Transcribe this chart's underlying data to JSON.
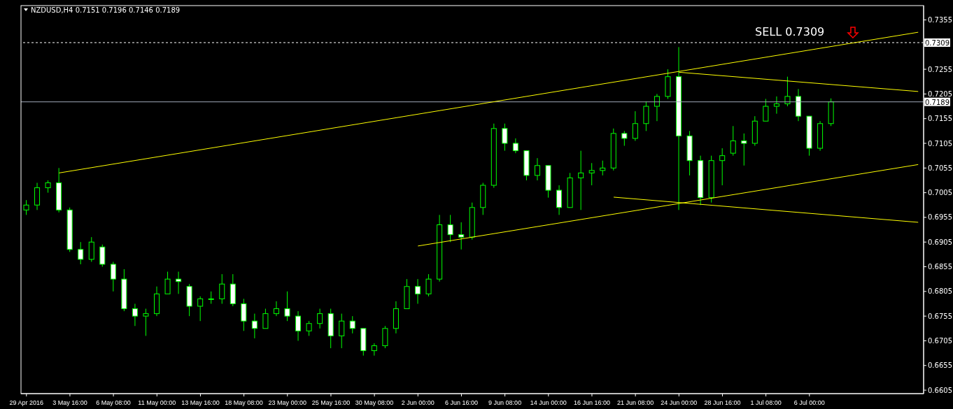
{
  "chart_data": {
    "type": "candlestick",
    "title": "NZDUSD,H4 0.7151 0.7196 0.7146 0.7189",
    "color": "#00ff00",
    "categories": [
      "29 Apr 2016",
      null,
      null,
      null,
      "3 May 16:00",
      null,
      null,
      null,
      "6 May 08:00",
      null,
      null,
      null,
      "11 May 00:00",
      null,
      null,
      null,
      "13 May 16:00",
      null,
      null,
      null,
      "18 May 08:00",
      null,
      null,
      null,
      "23 May 00:00",
      null,
      null,
      null,
      "25 May 16:00",
      null,
      null,
      null,
      "30 May 08:00",
      null,
      null,
      null,
      "2 Jun 00:00",
      null,
      null,
      null,
      "6 Jun 16:00",
      null,
      null,
      null,
      "9 Jun 08:00",
      null,
      null,
      null,
      "14 Jun 00:00",
      null,
      null,
      null,
      "16 Jun 16:00",
      null,
      null,
      null,
      "21 Jun 08:00",
      null,
      null,
      null,
      "24 Jun 00:00",
      null,
      null,
      null,
      "28 Jun 16:00",
      null,
      null,
      null,
      "1 Jul 08:00",
      null,
      null,
      null,
      "6 Jul 00:00",
      null,
      null,
      null,
      null,
      null,
      null,
      null,
      null,
      null,
      null
    ],
    "ohlc": [
      [
        0.697,
        0.699,
        0.696,
        0.698
      ],
      [
        0.698,
        0.7025,
        0.697,
        0.7015
      ],
      [
        0.7015,
        0.703,
        0.7005,
        0.7025
      ],
      [
        0.7025,
        0.7055,
        0.6965,
        0.697
      ],
      [
        0.697,
        0.6975,
        0.6885,
        0.689
      ],
      [
        0.689,
        0.6905,
        0.686,
        0.687
      ],
      [
        0.687,
        0.6915,
        0.6865,
        0.6905
      ],
      [
        0.6895,
        0.69,
        0.6855,
        0.686
      ],
      [
        0.686,
        0.6865,
        0.6805,
        0.683
      ],
      [
        0.683,
        0.685,
        0.6765,
        0.677
      ],
      [
        0.677,
        0.678,
        0.6735,
        0.6755
      ],
      [
        0.6755,
        0.677,
        0.6715,
        0.676
      ],
      [
        0.676,
        0.6815,
        0.6755,
        0.68
      ],
      [
        0.68,
        0.6845,
        0.68,
        0.683
      ],
      [
        0.683,
        0.6845,
        0.68,
        0.6825
      ],
      [
        0.6815,
        0.682,
        0.6755,
        0.6775
      ],
      [
        0.6775,
        0.6795,
        0.6745,
        0.679
      ],
      [
        0.679,
        0.6805,
        0.678,
        0.679
      ],
      [
        0.679,
        0.684,
        0.678,
        0.682
      ],
      [
        0.682,
        0.684,
        0.6775,
        0.678
      ],
      [
        0.678,
        0.679,
        0.6725,
        0.6745
      ],
      [
        0.6745,
        0.676,
        0.671,
        0.673
      ],
      [
        0.673,
        0.677,
        0.673,
        0.676
      ],
      [
        0.676,
        0.6785,
        0.6755,
        0.677
      ],
      [
        0.677,
        0.6805,
        0.6745,
        0.6755
      ],
      [
        0.6755,
        0.6765,
        0.6705,
        0.6725
      ],
      [
        0.6725,
        0.6745,
        0.6715,
        0.674
      ],
      [
        0.674,
        0.677,
        0.673,
        0.676
      ],
      [
        0.676,
        0.677,
        0.669,
        0.6715
      ],
      [
        0.6715,
        0.676,
        0.669,
        0.6745
      ],
      [
        0.6745,
        0.6755,
        0.672,
        0.673
      ],
      [
        0.673,
        0.673,
        0.6675,
        0.6685
      ],
      [
        0.6685,
        0.67,
        0.6675,
        0.6695
      ],
      [
        0.6695,
        0.6735,
        0.669,
        0.673
      ],
      [
        0.673,
        0.6785,
        0.672,
        0.677
      ],
      [
        0.677,
        0.683,
        0.677,
        0.6815
      ],
      [
        0.6815,
        0.683,
        0.678,
        0.68
      ],
      [
        0.68,
        0.684,
        0.6795,
        0.683
      ],
      [
        0.683,
        0.696,
        0.6825,
        0.694
      ],
      [
        0.694,
        0.696,
        0.6905,
        0.692
      ],
      [
        0.692,
        0.6945,
        0.689,
        0.6915
      ],
      [
        0.6915,
        0.6985,
        0.691,
        0.6975
      ],
      [
        0.6975,
        0.7025,
        0.696,
        0.702
      ],
      [
        0.702,
        0.7145,
        0.7015,
        0.7135
      ],
      [
        0.7135,
        0.7145,
        0.709,
        0.7105
      ],
      [
        0.7105,
        0.7115,
        0.7085,
        0.709
      ],
      [
        0.709,
        0.709,
        0.703,
        0.704
      ],
      [
        0.704,
        0.7075,
        0.703,
        0.706
      ],
      [
        0.706,
        0.706,
        0.6995,
        0.701
      ],
      [
        0.701,
        0.702,
        0.696,
        0.6975
      ],
      [
        0.6975,
        0.7045,
        0.6975,
        0.7035
      ],
      [
        0.7035,
        0.709,
        0.697,
        0.7045
      ],
      [
        0.7045,
        0.7065,
        0.702,
        0.705
      ],
      [
        0.705,
        0.707,
        0.704,
        0.7055
      ],
      [
        0.7055,
        0.7135,
        0.705,
        0.7125
      ],
      [
        0.7125,
        0.713,
        0.71,
        0.7115
      ],
      [
        0.7115,
        0.717,
        0.711,
        0.7145
      ],
      [
        0.7145,
        0.719,
        0.713,
        0.718
      ],
      [
        0.718,
        0.7205,
        0.715,
        0.72
      ],
      [
        0.72,
        0.7255,
        0.7195,
        0.724
      ],
      [
        0.724,
        0.73,
        0.697,
        0.712
      ],
      [
        0.712,
        0.713,
        0.704,
        0.707
      ],
      [
        0.707,
        0.708,
        0.698,
        0.6995
      ],
      [
        0.6995,
        0.708,
        0.6985,
        0.707
      ],
      [
        0.707,
        0.7095,
        0.702,
        0.708
      ],
      [
        0.7085,
        0.714,
        0.708,
        0.711
      ],
      [
        0.711,
        0.7125,
        0.706,
        0.7105
      ],
      [
        0.7105,
        0.716,
        0.71,
        0.715
      ],
      [
        0.715,
        0.7195,
        0.715,
        0.718
      ],
      [
        0.718,
        0.72,
        0.7165,
        0.7185
      ],
      [
        0.7185,
        0.724,
        0.718,
        0.72
      ],
      [
        0.72,
        0.7215,
        0.715,
        0.716
      ],
      [
        0.716,
        0.716,
        0.708,
        0.7095
      ],
      [
        0.7095,
        0.715,
        0.709,
        0.7145
      ],
      [
        0.7145,
        0.7196,
        0.714,
        0.7189
      ],
      null,
      null,
      null,
      null,
      null,
      null,
      null,
      null
    ],
    "series": [
      {
        "type": "line",
        "color": "#ffff00",
        "values": [
          null,
          null,
          null,
          0.7045,
          null,
          null,
          null,
          null,
          null,
          null,
          null,
          null,
          null,
          null,
          null,
          null,
          null,
          null,
          null,
          null,
          null,
          null,
          null,
          null,
          null,
          null,
          null,
          null,
          null,
          null,
          null,
          null,
          null,
          null,
          null,
          null,
          null,
          null,
          null,
          null,
          null,
          null,
          null,
          null,
          null,
          null,
          null,
          null,
          null,
          null,
          null,
          null,
          null,
          null,
          null,
          null,
          null,
          null,
          null,
          null,
          null,
          null,
          null,
          null,
          null,
          null,
          null,
          null,
          null,
          null,
          null,
          null,
          null,
          null,
          null,
          null,
          null,
          null,
          null,
          null,
          null,
          null,
          0.733
        ]
      },
      {
        "type": "line",
        "color": "#ffff00",
        "values": [
          null,
          null,
          null,
          null,
          null,
          null,
          null,
          null,
          null,
          null,
          null,
          null,
          null,
          null,
          null,
          null,
          null,
          null,
          null,
          null,
          null,
          null,
          null,
          null,
          null,
          null,
          null,
          null,
          null,
          null,
          null,
          null,
          null,
          null,
          null,
          null,
          0.6897,
          null,
          null,
          null,
          null,
          null,
          null,
          null,
          null,
          null,
          null,
          null,
          null,
          null,
          null,
          null,
          null,
          null,
          null,
          null,
          null,
          null,
          null,
          null,
          null,
          null,
          null,
          null,
          null,
          null,
          null,
          null,
          null,
          null,
          null,
          null,
          null,
          null,
          null,
          null,
          null,
          null,
          null,
          null,
          null,
          null,
          0.7062
        ]
      },
      {
        "type": "line",
        "color": "#ffff00",
        "values": [
          null,
          null,
          null,
          null,
          null,
          null,
          null,
          null,
          null,
          null,
          null,
          null,
          null,
          null,
          null,
          null,
          null,
          null,
          null,
          null,
          null,
          null,
          null,
          null,
          null,
          null,
          null,
          null,
          null,
          null,
          null,
          null,
          null,
          null,
          null,
          null,
          null,
          null,
          null,
          null,
          null,
          null,
          null,
          null,
          null,
          null,
          null,
          null,
          null,
          null,
          null,
          null,
          null,
          null,
          null,
          null,
          null,
          null,
          null,
          null,
          0.7249,
          null,
          null,
          null,
          null,
          null,
          null,
          null,
          null,
          null,
          null,
          null,
          null,
          null,
          null,
          null,
          null,
          null,
          null,
          null,
          null,
          null,
          0.721
        ]
      },
      {
        "type": "line",
        "color": "#ffff00",
        "values": [
          null,
          null,
          null,
          null,
          null,
          null,
          null,
          null,
          null,
          null,
          null,
          null,
          null,
          null,
          null,
          null,
          null,
          null,
          null,
          null,
          null,
          null,
          null,
          null,
          null,
          null,
          null,
          null,
          null,
          null,
          null,
          null,
          null,
          null,
          null,
          null,
          null,
          null,
          null,
          null,
          null,
          null,
          null,
          null,
          null,
          null,
          null,
          null,
          null,
          null,
          null,
          null,
          null,
          null,
          0.6996,
          null,
          null,
          null,
          null,
          null,
          null,
          null,
          null,
          null,
          null,
          null,
          null,
          null,
          null,
          null,
          null,
          null,
          null,
          null,
          null,
          null,
          null,
          null,
          null,
          null,
          null,
          null,
          0.6945
        ]
      }
    ],
    "ylim": [
      0.6598,
      0.7384
    ],
    "yticks": [
      0.7355,
      {
        "value": 0.7305,
        "label": null
      },
      0.7255,
      0.7205,
      0.7155,
      0.7105,
      0.7055,
      0.7005,
      0.6955,
      0.6905,
      0.6855,
      0.6805,
      0.6755,
      0.6705,
      0.6655,
      0.6605
    ],
    "ref_lines": [
      {
        "axis": "y",
        "value": 0.7309,
        "label": "0.7309",
        "color": "#ffffff",
        "line_style": "dashed"
      },
      {
        "axis": "y",
        "value": 0.7189,
        "label": "0.7189",
        "color": "#a0a8b8",
        "line_style": "solid"
      }
    ],
    "annotations": [
      {
        "text": "SELL 0.7309",
        "y": 0.7309
      }
    ]
  }
}
